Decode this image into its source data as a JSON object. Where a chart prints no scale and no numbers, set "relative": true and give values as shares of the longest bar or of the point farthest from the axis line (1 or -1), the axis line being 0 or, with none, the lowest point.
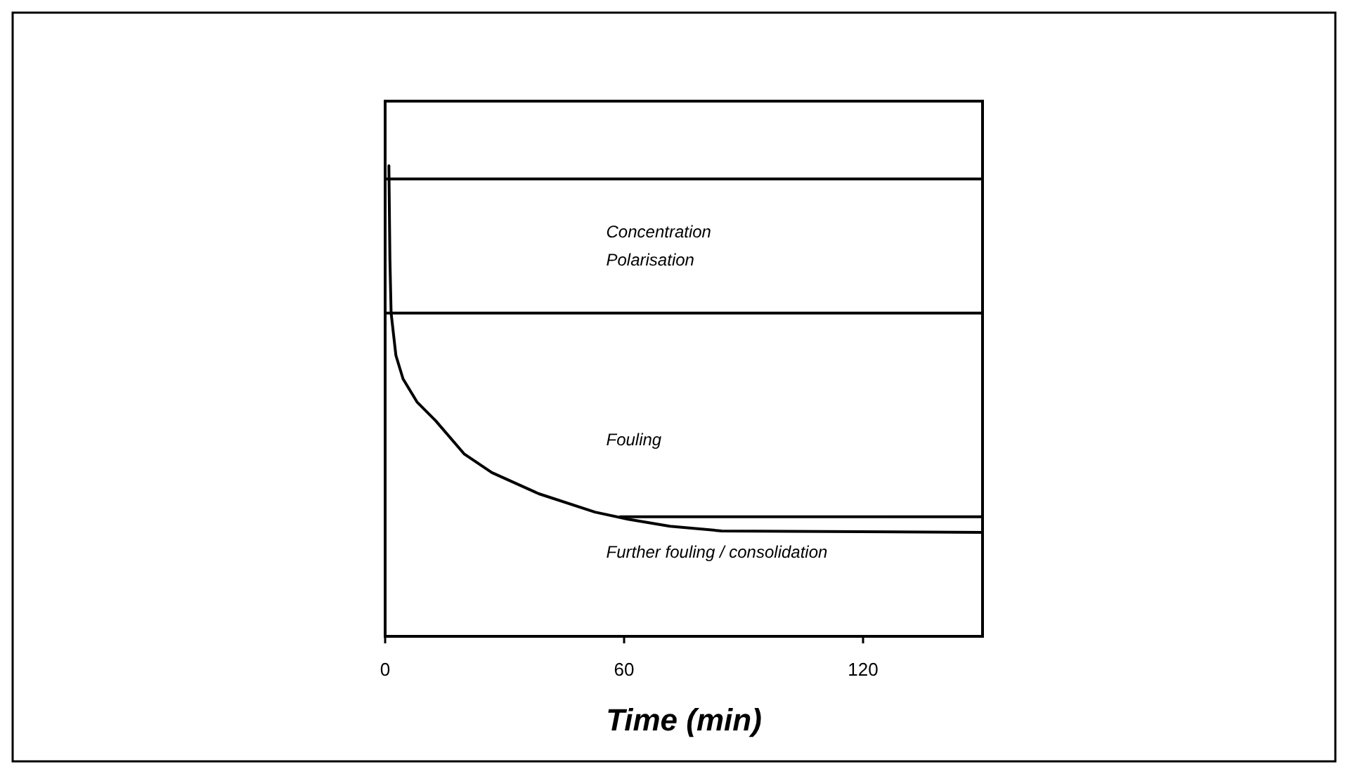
{
  "chart_data": {
    "type": "line",
    "relative": true,
    "xlabel": "Time (min)",
    "xlim": [
      0,
      150
    ],
    "xticks": [
      0,
      60,
      120
    ],
    "tick_labels": "x",
    "line_style": "solid",
    "series": [
      {
        "color": "#000000",
        "x": [
          0.94,
          1.2,
          1.5,
          2.7,
          4.5,
          8,
          12.7,
          19.8,
          26.8,
          38.6,
          52.7,
          61,
          71.5,
          84.5,
          150
        ],
        "values": [
          1.0,
          0.8,
          0.687,
          0.597,
          0.547,
          0.498,
          0.458,
          0.388,
          0.348,
          0.303,
          0.264,
          0.249,
          0.234,
          0.224,
          0.221
        ]
      },
      {
        "color": "#000000",
        "x": [
          59,
          150
        ],
        "values": [
          0.254,
          0.254
        ]
      }
    ],
    "ref_lines": [
      {
        "axis": "y",
        "value": 0.972,
        "color": "#000000"
      },
      {
        "axis": "y",
        "value": 0.687,
        "color": "#000000"
      }
    ],
    "annotations": [
      "Concentration\nPolarisation",
      "Fouling",
      "Further fouling / consolidation"
    ]
  }
}
